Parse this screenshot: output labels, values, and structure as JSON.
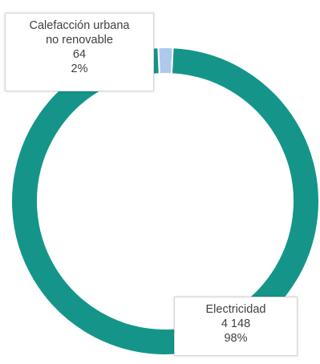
{
  "chart_data": {
    "type": "pie",
    "donut": true,
    "slices": [
      {
        "label_lines": [
          "Calefacción urbana",
          "no renovable"
        ],
        "value": 64,
        "value_text": "64",
        "percent_text": "2%",
        "color": "#aec8ee"
      },
      {
        "label_lines": [
          "Electricidad"
        ],
        "value": 4148,
        "value_text": "4 148",
        "percent_text": "98%",
        "color": "#15958a"
      }
    ],
    "legend": "none",
    "data_labels": "callout boxes"
  }
}
